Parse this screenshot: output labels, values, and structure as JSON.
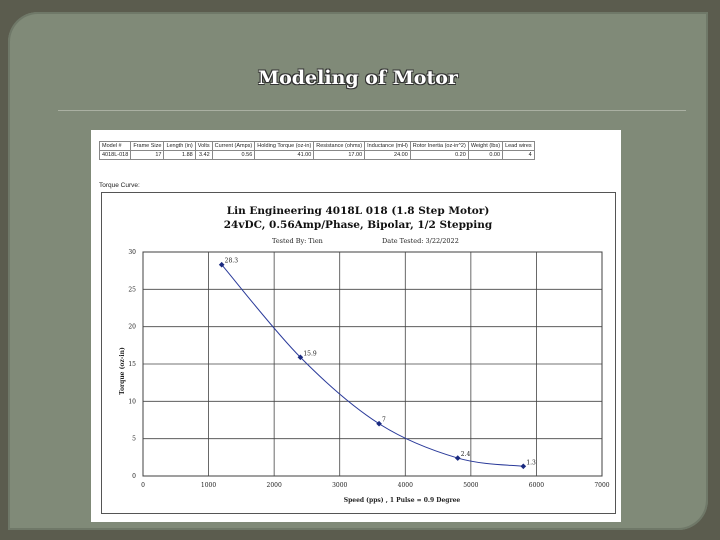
{
  "slide": {
    "title": "Modeling of Motor"
  },
  "specs": {
    "headers": [
      "Model #",
      "Frame Size",
      "Length (in)",
      "Volts",
      "Current (Amps)",
      "Holding Torque (oz-in)",
      "Resistance (ohms)",
      "Inductance (mH)",
      "Rotor Inertia (oz-in^2)",
      "Weight (lbs)",
      "Lead wires"
    ],
    "row": [
      "4018L-018",
      "17",
      "1.88",
      "3.42",
      "0.56",
      "41.00",
      "17.00",
      "24.00",
      "0.20",
      "0.00",
      "4"
    ]
  },
  "torque_curve_label": "Torque Curve:",
  "chart_data": {
    "type": "line",
    "title": "Lin Engineering 4018L 018 (1.8 Step Motor)",
    "subtitle": "24vDC, 0.56Amp/Phase, Bipolar, 1/2 Stepping",
    "tested_by": "Tested By:   Tien",
    "date_tested": "Date Tested:  3/22/2022",
    "xlabel": "Speed (pps) , 1 Pulse = 0.9 Degree",
    "ylabel": "Torque (oz-in)",
    "xlim": [
      0,
      7000
    ],
    "ylim": [
      0,
      30
    ],
    "x_ticks": [
      "0",
      "1000",
      "2000",
      "3000",
      "4000",
      "5000",
      "6000",
      "7000"
    ],
    "y_ticks": [
      "0",
      "5",
      "10",
      "15",
      "20",
      "25",
      "30"
    ],
    "grid": true,
    "points": [
      {
        "x": 1200,
        "y": 28.3,
        "label": "28.3"
      },
      {
        "x": 2400,
        "y": 15.9,
        "label": "15.9"
      },
      {
        "x": 3600,
        "y": 7.0,
        "label": "7"
      },
      {
        "x": 4800,
        "y": 2.4,
        "label": "2.4"
      },
      {
        "x": 5800,
        "y": 1.3,
        "label": "1.3"
      }
    ],
    "line_color": "#2a3a9a",
    "marker_color": "#1a2a80"
  }
}
